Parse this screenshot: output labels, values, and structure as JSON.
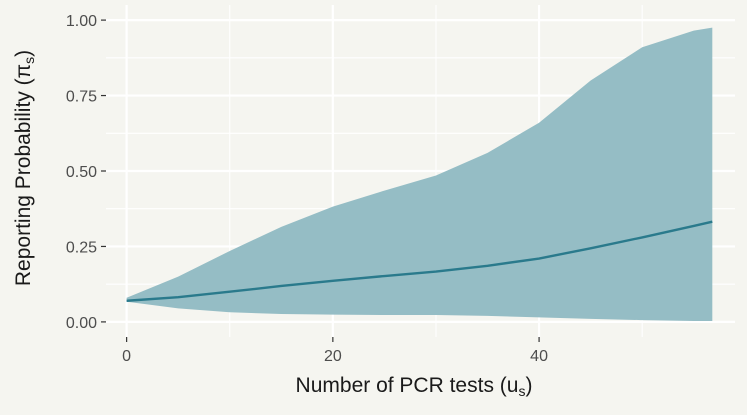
{
  "chart_data": {
    "type": "area",
    "xlabel": "Number of PCR tests (u",
    "xlabel_sub": "s",
    "xlabel_close": ")",
    "ylabel": "Reporting Probability (π",
    "ylabel_sub": "s",
    "ylabel_close": ")",
    "xlim": [
      -2,
      59
    ],
    "ylim": [
      -0.05,
      1.05
    ],
    "x_ticks": [
      0,
      20,
      40
    ],
    "x_tick_labels": [
      "0",
      "20",
      "40"
    ],
    "x_minor_ticks": [
      10,
      30,
      50
    ],
    "y_ticks": [
      0,
      0.25,
      0.5,
      0.75,
      1.0
    ],
    "y_tick_labels": [
      "0.00",
      "0.25",
      "0.50",
      "0.75",
      "1.00"
    ],
    "y_minor_ticks": [
      0.125,
      0.375,
      0.625,
      0.875
    ],
    "grid": true,
    "colors": {
      "background": "#f5f5f0",
      "grid": "#ffffff",
      "ribbon": "#8fb9c2",
      "line": "#2a7a8c"
    },
    "series": [
      {
        "role": "ribbon",
        "x": [
          0,
          5,
          10,
          15,
          20,
          25,
          30,
          35,
          40,
          45,
          50,
          55,
          56.8
        ],
        "lower": [
          0.067,
          0.045,
          0.032,
          0.026,
          0.024,
          0.023,
          0.023,
          0.02,
          0.015,
          0.01,
          0.006,
          0.003,
          0.003
        ],
        "upper": [
          0.08,
          0.15,
          0.235,
          0.315,
          0.382,
          0.435,
          0.485,
          0.56,
          0.66,
          0.8,
          0.91,
          0.965,
          0.975
        ]
      },
      {
        "role": "line",
        "x": [
          0,
          5,
          10,
          15,
          20,
          25,
          30,
          35,
          40,
          45,
          50,
          55,
          56.8
        ],
        "y": [
          0.07,
          0.082,
          0.1,
          0.119,
          0.136,
          0.152,
          0.167,
          0.186,
          0.21,
          0.244,
          0.28,
          0.318,
          0.332
        ]
      }
    ]
  }
}
